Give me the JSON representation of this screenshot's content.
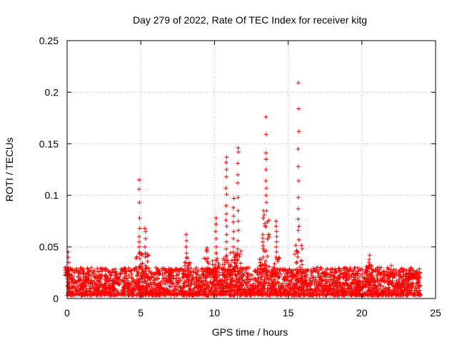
{
  "chart_data": {
    "type": "scatter",
    "title": "Day 279 of 2022, Rate Of TEC Index for receiver kitg",
    "xlabel": "GPS time / hours",
    "ylabel": "ROTI / TECUs",
    "xlim": [
      0,
      25
    ],
    "ylim": [
      0,
      0.25
    ],
    "xticks": [
      0,
      5,
      10,
      15,
      20,
      25
    ],
    "yticks": [
      0,
      0.05,
      0.1,
      0.15,
      0.2,
      0.25
    ],
    "xtick_labels": [
      "0",
      "5",
      "10",
      "15",
      "20",
      "25"
    ],
    "ytick_labels": [
      "0",
      "0.05",
      "0.1",
      "0.15",
      "0.2",
      "0.25"
    ],
    "grid": true,
    "marker": "+",
    "marker_color": "#ff0000",
    "series": [
      {
        "name": "ROTI",
        "background_band": {
          "x_range": [
            0,
            24
          ],
          "y_range": [
            0.003,
            0.03
          ],
          "approx_count": 3000
        },
        "spikes": [
          {
            "x": 0.1,
            "values": [
              0.045,
              0.04,
              0.035,
              0.03
            ]
          },
          {
            "x": 4.9,
            "values": [
              0.115,
              0.106,
              0.093,
              0.078,
              0.068,
              0.06,
              0.055,
              0.05,
              0.045
            ]
          },
          {
            "x": 5.3,
            "values": [
              0.068,
              0.065,
              0.058,
              0.05,
              0.044
            ]
          },
          {
            "x": 8.1,
            "values": [
              0.062,
              0.056,
              0.05,
              0.044,
              0.04
            ]
          },
          {
            "x": 9.5,
            "values": [
              0.049,
              0.047
            ]
          },
          {
            "x": 10.1,
            "values": [
              0.078,
              0.072,
              0.065,
              0.058,
              0.05,
              0.044
            ]
          },
          {
            "x": 10.8,
            "values": [
              0.137,
              0.132,
              0.125,
              0.118,
              0.107,
              0.101,
              0.09,
              0.082,
              0.076,
              0.07,
              0.062,
              0.055,
              0.048,
              0.042
            ]
          },
          {
            "x": 11.3,
            "values": [
              0.097,
              0.088,
              0.08,
              0.074,
              0.065,
              0.058,
              0.05,
              0.045
            ]
          },
          {
            "x": 11.6,
            "values": [
              0.146,
              0.142,
              0.131,
              0.12,
              0.112,
              0.098,
              0.085,
              0.075,
              0.066,
              0.056,
              0.048
            ]
          },
          {
            "x": 13.3,
            "values": [
              0.085,
              0.078,
              0.062,
              0.055,
              0.048,
              0.04
            ]
          },
          {
            "x": 13.5,
            "values": [
              0.176,
              0.159,
              0.141,
              0.135,
              0.125,
              0.114,
              0.107,
              0.1,
              0.093,
              0.085
            ]
          },
          {
            "x": 14.2,
            "values": [
              0.075,
              0.07,
              0.065,
              0.06,
              0.055,
              0.05,
              0.045,
              0.04
            ]
          },
          {
            "x": 15.7,
            "values": [
              0.209,
              0.184,
              0.162,
              0.145,
              0.128,
              0.114,
              0.098,
              0.087,
              0.077,
              0.07,
              0.066,
              0.057
            ]
          },
          {
            "x": 20.5,
            "values": [
              0.042,
              0.038,
              0.035,
              0.032
            ]
          },
          {
            "x": 22.0,
            "values": [
              0.032,
              0.028,
              0.025
            ]
          },
          {
            "x": 23.5,
            "values": [
              0.026,
              0.024
            ]
          }
        ]
      }
    ]
  }
}
